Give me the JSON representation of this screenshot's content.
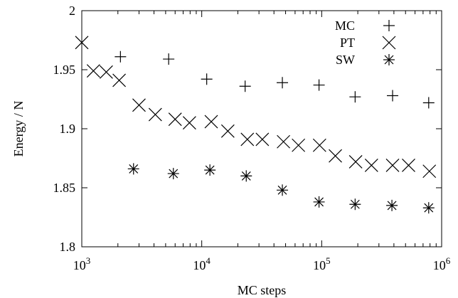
{
  "chart_data": {
    "type": "scatter",
    "title": "",
    "xlabel": "MC steps",
    "ylabel": "Energy / N",
    "xscale": "log",
    "xlim": [
      1000,
      1000000
    ],
    "ylim": [
      1.8,
      2.0
    ],
    "x_ticks": [
      {
        "base": "10",
        "exp": "3",
        "value": 1000
      },
      {
        "base": "10",
        "exp": "4",
        "value": 10000
      },
      {
        "base": "10",
        "exp": "5",
        "value": 100000
      },
      {
        "base": "10",
        "exp": "6",
        "value": 1000000
      }
    ],
    "y_ticks": [
      "1.8",
      "1.85",
      "1.9",
      "1.95",
      "2"
    ],
    "grid": false,
    "legend_position": "top-right",
    "series": [
      {
        "name": "MC",
        "marker": "plus",
        "x": [
          2100,
          5300,
          11000,
          23000,
          47000,
          95000,
          190000,
          390000,
          780000
        ],
        "y": [
          1.961,
          1.959,
          1.942,
          1.936,
          1.939,
          1.937,
          1.927,
          1.928,
          1.922
        ]
      },
      {
        "name": "PT",
        "marker": "cross",
        "x": [
          1000,
          1250,
          1600,
          2050,
          3000,
          4100,
          6000,
          7900,
          12000,
          16500,
          24000,
          32000,
          48000,
          64000,
          96000,
          130000,
          192000,
          260000,
          390000,
          530000,
          790000
        ],
        "y": [
          1.973,
          1.949,
          1.948,
          1.941,
          1.92,
          1.912,
          1.908,
          1.905,
          1.906,
          1.898,
          1.891,
          1.891,
          1.889,
          1.886,
          1.886,
          1.877,
          1.872,
          1.869,
          1.869,
          1.869,
          1.864
        ]
      },
      {
        "name": "SW",
        "marker": "asterisk",
        "x": [
          2700,
          5800,
          11700,
          23500,
          47000,
          95000,
          190000,
          385000,
          780000
        ],
        "y": [
          1.866,
          1.862,
          1.865,
          1.86,
          1.848,
          1.838,
          1.836,
          1.835,
          1.833
        ]
      }
    ]
  }
}
